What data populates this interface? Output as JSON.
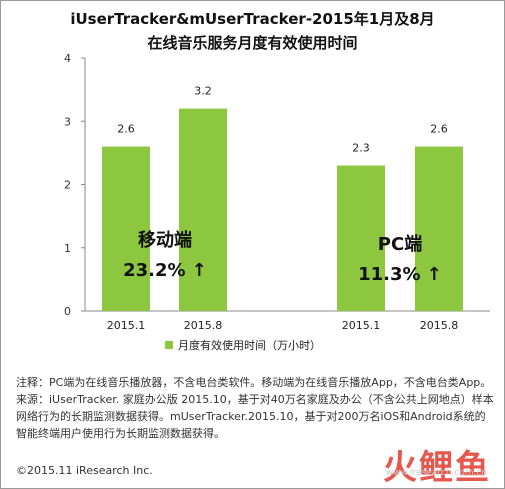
{
  "title": {
    "line1": "iUserTracker&mUserTracker-2015年1月及8月",
    "line2": "在线音乐服务月度有效使用时间"
  },
  "chart_data": {
    "type": "bar",
    "groups": [
      {
        "categories": [
          "2015.1",
          "2015.8"
        ],
        "values": [
          2.6,
          3.2
        ],
        "callout_name": "移动端",
        "callout_change": "23.2% ↑"
      },
      {
        "categories": [
          "2015.1",
          "2015.8"
        ],
        "values": [
          2.3,
          2.6
        ],
        "callout_name": "PC端",
        "callout_change": "11.3% ↑"
      }
    ],
    "categories": [
      "2015.1",
      "2015.8",
      "2015.1",
      "2015.8"
    ],
    "series": [
      {
        "name": "月度有效使用时间（万小时）",
        "values": [
          2.6,
          3.2,
          2.3,
          2.6
        ]
      }
    ],
    "ylim": [
      0,
      4
    ],
    "yticks": [
      "0",
      "1",
      "2",
      "3",
      "4"
    ],
    "grid": false,
    "legend": "bottom",
    "bar_color": "#8dc63f"
  },
  "notes": {
    "line1": "注释：PC端为在线音乐播放器，不含电台类软件。移动端为在线音乐播放App，不含电台类App。",
    "line2": "来源：iUserTracker. 家庭办公版 2015.10，基于对40万名家庭及办公（不含公共上网地点）样本网络行为的长期监测数据获得。mUserTracker.2015.10，基于对200万名iOS和Android系统的智能终端用户使用行为长期监测数据获得。"
  },
  "copyright": "©2015.11 iResearch Inc.",
  "watermark": {
    "logo": "火鲤鱼",
    "url": "www.iresearch.com.cn"
  }
}
